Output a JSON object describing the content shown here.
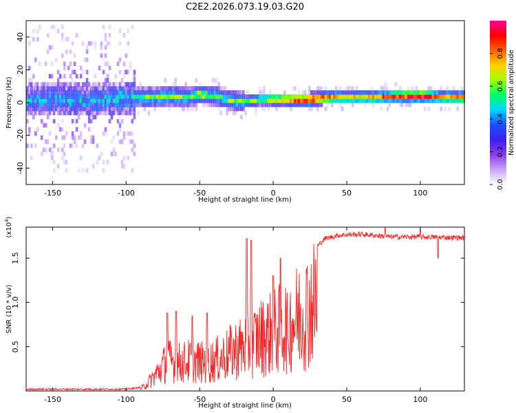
{
  "title": "C2E2.2026.073.19.03.G20",
  "chart_data": [
    {
      "type": "heatmap",
      "name": "spectrogram",
      "xlabel": "Height of straight line (km)",
      "ylabel": "Frequency (Hz)",
      "xlim": [
        -168,
        130
      ],
      "ylim": [
        -50,
        50
      ],
      "x_ticks": [
        -150,
        -100,
        -50,
        0,
        50,
        100
      ],
      "y_ticks": [
        -40,
        -20,
        0,
        20,
        40
      ],
      "colorbar": {
        "label": "Normalized spectral amplitude",
        "range": [
          0,
          1
        ],
        "ticks": [
          "0.0",
          "0.2",
          "0.4",
          "0.6",
          "0.8"
        ],
        "tick_values": [
          0.0,
          0.2,
          0.4,
          0.6,
          0.8
        ],
        "colormap": [
          "#ffffff",
          "#c9a6f5",
          "#8a3cf0",
          "#3c1ef0",
          "#1e50ff",
          "#00d4ff",
          "#00ff66",
          "#a0ff00",
          "#ffd000",
          "#ff6000",
          "#ff0000",
          "#ff00a0"
        ]
      },
      "ridge": [
        {
          "x": -165,
          "f": 0,
          "a": 0.4
        },
        {
          "x": -150,
          "f": 1,
          "a": 0.42
        },
        {
          "x": -130,
          "f": 0,
          "a": 0.42
        },
        {
          "x": -110,
          "f": 1,
          "a": 0.45
        },
        {
          "x": -95,
          "f": 2,
          "a": 0.48
        },
        {
          "x": -80,
          "f": 2,
          "a": 0.55
        },
        {
          "x": -70,
          "f": 3,
          "a": 0.55
        },
        {
          "x": -60,
          "f": 2,
          "a": 0.52
        },
        {
          "x": -50,
          "f": 4,
          "a": 0.55
        },
        {
          "x": -40,
          "f": 3,
          "a": 0.52
        },
        {
          "x": -30,
          "f": 0,
          "a": 0.5
        },
        {
          "x": -20,
          "f": -1,
          "a": 0.55
        },
        {
          "x": -10,
          "f": 1,
          "a": 0.58
        },
        {
          "x": 0,
          "f": 1,
          "a": 0.7
        },
        {
          "x": 10,
          "f": 1,
          "a": 0.85
        },
        {
          "x": 25,
          "f": 1,
          "a": 0.95
        },
        {
          "x": 40,
          "f": 2,
          "a": 0.8
        },
        {
          "x": 55,
          "f": 2,
          "a": 0.7
        },
        {
          "x": 70,
          "f": 2,
          "a": 0.75
        },
        {
          "x": 85,
          "f": 3,
          "a": 0.82
        },
        {
          "x": 100,
          "f": 3,
          "a": 0.9
        },
        {
          "x": 115,
          "f": 2,
          "a": 0.75
        },
        {
          "x": 128,
          "f": 2,
          "a": 0.8
        }
      ],
      "noise": {
        "x_end": -95,
        "f_spread": 45,
        "a_max": 0.35
      }
    },
    {
      "type": "line",
      "name": "snr",
      "xlabel": "Height of straight line (km)",
      "ylabel": "SNR (10 * v/v)",
      "multiplier": "(x10^4)",
      "multiplier_base": "(x10",
      "multiplier_exp": "4",
      "multiplier_end": ")",
      "xlim": [
        -168,
        130
      ],
      "ylim": [
        0,
        1.85
      ],
      "x_ticks": [
        -150,
        -100,
        -50,
        0,
        50,
        100
      ],
      "y_ticks": [
        "0.5",
        "1.0",
        "1.5"
      ],
      "y_tick_values": [
        0.5,
        1.0,
        1.5
      ],
      "color": "#ff2020",
      "envelope": [
        {
          "x": -168,
          "v": 0.02
        },
        {
          "x": -100,
          "v": 0.02
        },
        {
          "x": -90,
          "v": 0.04
        },
        {
          "x": -85,
          "v": 0.15
        },
        {
          "x": -78,
          "v": 0.35
        },
        {
          "x": -72,
          "v": 0.55
        },
        {
          "x": -65,
          "v": 0.5
        },
        {
          "x": -55,
          "v": 0.55
        },
        {
          "x": -45,
          "v": 0.5
        },
        {
          "x": -35,
          "v": 0.6
        },
        {
          "x": -25,
          "v": 0.75
        },
        {
          "x": -15,
          "v": 0.85
        },
        {
          "x": -10,
          "v": 0.95
        },
        {
          "x": 0,
          "v": 1.05
        },
        {
          "x": 10,
          "v": 1.2
        },
        {
          "x": 20,
          "v": 1.4
        },
        {
          "x": 28,
          "v": 1.6
        },
        {
          "x": 35,
          "v": 1.72
        },
        {
          "x": 45,
          "v": 1.76
        },
        {
          "x": 60,
          "v": 1.77
        },
        {
          "x": 80,
          "v": 1.74
        },
        {
          "x": 100,
          "v": 1.74
        },
        {
          "x": 130,
          "v": 1.73
        }
      ],
      "spikes": [
        {
          "x": -72,
          "v": 0.88
        },
        {
          "x": -66,
          "v": 0.9
        },
        {
          "x": -55,
          "v": 0.85
        },
        {
          "x": -45,
          "v": 0.88
        },
        {
          "x": -18,
          "v": 1.72
        },
        {
          "x": -15,
          "v": 1.7
        },
        {
          "x": 0,
          "v": 1.3
        },
        {
          "x": 5,
          "v": 1.5
        },
        {
          "x": 10,
          "v": 0.58
        },
        {
          "x": 76,
          "v": 1.84
        },
        {
          "x": 100,
          "v": 1.82
        },
        {
          "x": 112,
          "v": 1.5
        }
      ]
    }
  ]
}
